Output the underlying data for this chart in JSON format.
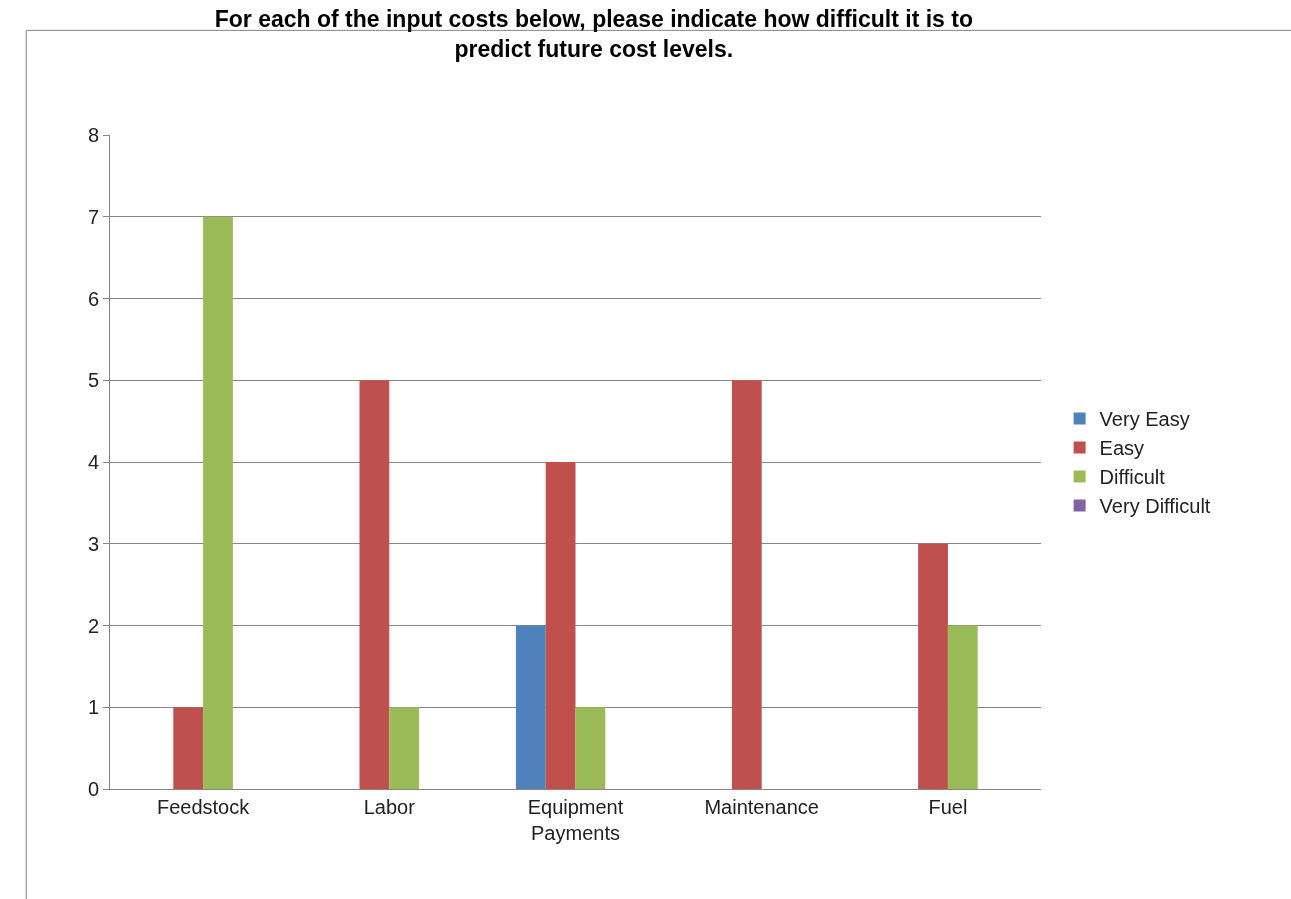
{
  "chart_data": {
    "type": "bar",
    "title": "For each of the input costs below, please indicate how difficult it is to predict future cost levels.",
    "categories": [
      "Feedstock",
      "Labor",
      "Equipment Payments",
      "Maintenance",
      "Fuel"
    ],
    "series": [
      {
        "name": "Very Easy",
        "color": "#4f81bd",
        "values": [
          0,
          0,
          2,
          0,
          0
        ]
      },
      {
        "name": "Easy",
        "color": "#c0504d",
        "values": [
          1,
          5,
          4,
          5,
          3
        ]
      },
      {
        "name": "Difficult",
        "color": "#9bbb59",
        "values": [
          7,
          1,
          1,
          0,
          2
        ]
      },
      {
        "name": "Very Difficult",
        "color": "#8064a2",
        "values": [
          0,
          0,
          0,
          0,
          0
        ]
      }
    ],
    "ylim": [
      0,
      8
    ],
    "yticks": [
      0,
      1,
      2,
      3,
      4,
      5,
      6,
      7,
      8
    ],
    "grid": "y",
    "legend": "right"
  }
}
